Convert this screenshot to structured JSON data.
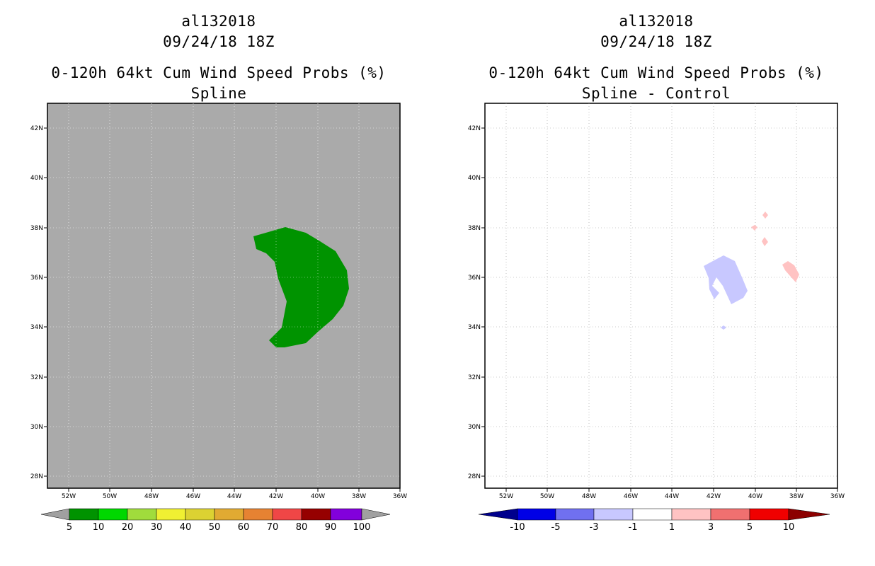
{
  "left": {
    "storm_id": "al132018",
    "date": "09/24/18 18Z",
    "product": "0-120h 64kt Cum Wind Speed Probs (%)",
    "subtitle": "Spline",
    "lat_labels": [
      "42N",
      "40N",
      "38N",
      "36N",
      "34N",
      "32N",
      "30N",
      "28N"
    ],
    "lon_labels": [
      "52W",
      "50W",
      "48W",
      "46W",
      "44W",
      "42W",
      "40W",
      "38W",
      "36W"
    ],
    "colorbar": {
      "labels": [
        "5",
        "10",
        "20",
        "30",
        "40",
        "50",
        "60",
        "70",
        "80",
        "90",
        "100"
      ],
      "colors": [
        "#009300",
        "#00d800",
        "#a0dc3c",
        "#f0f032",
        "#dcd232",
        "#e1aa32",
        "#e68232",
        "#f04646",
        "#960000",
        "#8200dc"
      ],
      "end_color": "#a0a0a0"
    },
    "field_color": "#009300",
    "background_color": "#aaaaaa"
  },
  "right": {
    "storm_id": "al132018",
    "date": "09/24/18 18Z",
    "product": "0-120h 64kt Cum Wind Speed Probs (%)",
    "subtitle": "Spline - Control",
    "lat_labels": [
      "42N",
      "40N",
      "38N",
      "36N",
      "34N",
      "32N",
      "30N",
      "28N"
    ],
    "lon_labels": [
      "52W",
      "50W",
      "48W",
      "46W",
      "44W",
      "42W",
      "40W",
      "38W",
      "36W"
    ],
    "colorbar": {
      "labels": [
        "-10",
        "-5",
        "-3",
        "-1",
        "1",
        "3",
        "5",
        "10"
      ],
      "colors": [
        "#0000e6",
        "#7070f0",
        "#c8c8ff",
        "#ffffff",
        "#ffc3c3",
        "#f07070",
        "#f00000"
      ],
      "low_end_color": "#00008c",
      "high_end_color": "#8c0000"
    },
    "negative_color": "#c8c8ff",
    "positive_color": "#ffc3c3"
  }
}
